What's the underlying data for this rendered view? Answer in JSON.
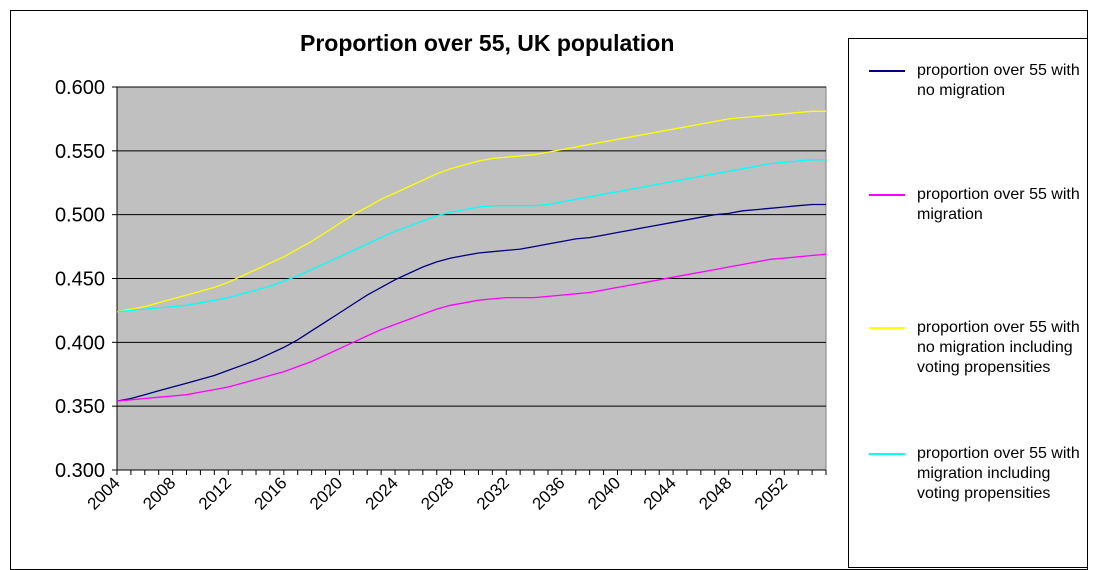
{
  "chart_data": {
    "type": "line",
    "title": "Proportion over 55, UK population",
    "xlabel": "",
    "ylabel": "",
    "x": [
      2004,
      2005,
      2006,
      2007,
      2008,
      2009,
      2010,
      2011,
      2012,
      2013,
      2014,
      2015,
      2016,
      2017,
      2018,
      2019,
      2020,
      2021,
      2022,
      2023,
      2024,
      2025,
      2026,
      2027,
      2028,
      2029,
      2030,
      2031,
      2032,
      2033,
      2034,
      2035,
      2036,
      2037,
      2038,
      2039,
      2040,
      2041,
      2042,
      2043,
      2044,
      2045,
      2046,
      2047,
      2048,
      2049,
      2050,
      2051,
      2052,
      2053,
      2054,
      2055
    ],
    "x_tick_labels": [
      "2004",
      "2008",
      "2012",
      "2016",
      "2020",
      "2024",
      "2028",
      "2032",
      "2036",
      "2040",
      "2044",
      "2048",
      "2052"
    ],
    "y_tick_labels": [
      "0.300",
      "0.350",
      "0.400",
      "0.450",
      "0.500",
      "0.550",
      "0.600"
    ],
    "ylim": [
      0.3,
      0.6
    ],
    "grid": true,
    "legend_position": "right",
    "plot_background": "#c0c0c0",
    "series": [
      {
        "name": "proportion over 55 with no migration",
        "color": "#000080",
        "values": [
          0.354,
          0.356,
          0.359,
          0.362,
          0.365,
          0.368,
          0.371,
          0.374,
          0.378,
          0.382,
          0.386,
          0.391,
          0.396,
          0.402,
          0.409,
          0.416,
          0.423,
          0.43,
          0.437,
          0.443,
          0.449,
          0.454,
          0.459,
          0.463,
          0.466,
          0.468,
          0.47,
          0.471,
          0.472,
          0.473,
          0.475,
          0.477,
          0.479,
          0.481,
          0.482,
          0.484,
          0.486,
          0.488,
          0.49,
          0.492,
          0.494,
          0.496,
          0.498,
          0.5,
          0.501,
          0.503,
          0.504,
          0.505,
          0.506,
          0.507,
          0.508,
          0.508
        ]
      },
      {
        "name": "proportion over 55 with migration",
        "color": "#ff00ff",
        "values": [
          0.354,
          0.355,
          0.356,
          0.357,
          0.358,
          0.359,
          0.361,
          0.363,
          0.365,
          0.368,
          0.371,
          0.374,
          0.377,
          0.381,
          0.385,
          0.39,
          0.395,
          0.4,
          0.405,
          0.41,
          0.414,
          0.418,
          0.422,
          0.426,
          0.429,
          0.431,
          0.433,
          0.434,
          0.435,
          0.435,
          0.435,
          0.436,
          0.437,
          0.438,
          0.439,
          0.441,
          0.443,
          0.445,
          0.447,
          0.449,
          0.451,
          0.453,
          0.455,
          0.457,
          0.459,
          0.461,
          0.463,
          0.465,
          0.466,
          0.467,
          0.468,
          0.469
        ]
      },
      {
        "name": "proportion over 55 with no migration including voting propensities",
        "color": "#ffff00",
        "values": [
          0.424,
          0.426,
          0.428,
          0.431,
          0.434,
          0.437,
          0.44,
          0.443,
          0.447,
          0.452,
          0.457,
          0.462,
          0.467,
          0.473,
          0.479,
          0.486,
          0.493,
          0.5,
          0.506,
          0.512,
          0.517,
          0.522,
          0.527,
          0.532,
          0.536,
          0.539,
          0.542,
          0.544,
          0.545,
          0.546,
          0.547,
          0.549,
          0.551,
          0.553,
          0.555,
          0.557,
          0.559,
          0.561,
          0.563,
          0.565,
          0.567,
          0.569,
          0.571,
          0.573,
          0.575,
          0.576,
          0.577,
          0.578,
          0.579,
          0.58,
          0.581,
          0.581
        ]
      },
      {
        "name": "proportion over 55 with migration including voting propensities",
        "color": "#00ffff",
        "values": [
          0.424,
          0.425,
          0.426,
          0.427,
          0.428,
          0.429,
          0.431,
          0.433,
          0.435,
          0.438,
          0.441,
          0.444,
          0.448,
          0.452,
          0.457,
          0.462,
          0.467,
          0.472,
          0.477,
          0.482,
          0.487,
          0.491,
          0.495,
          0.499,
          0.502,
          0.504,
          0.506,
          0.507,
          0.507,
          0.507,
          0.507,
          0.508,
          0.51,
          0.512,
          0.514,
          0.516,
          0.518,
          0.52,
          0.522,
          0.524,
          0.526,
          0.528,
          0.53,
          0.532,
          0.534,
          0.536,
          0.538,
          0.54,
          0.541,
          0.542,
          0.543,
          0.543
        ]
      }
    ]
  }
}
